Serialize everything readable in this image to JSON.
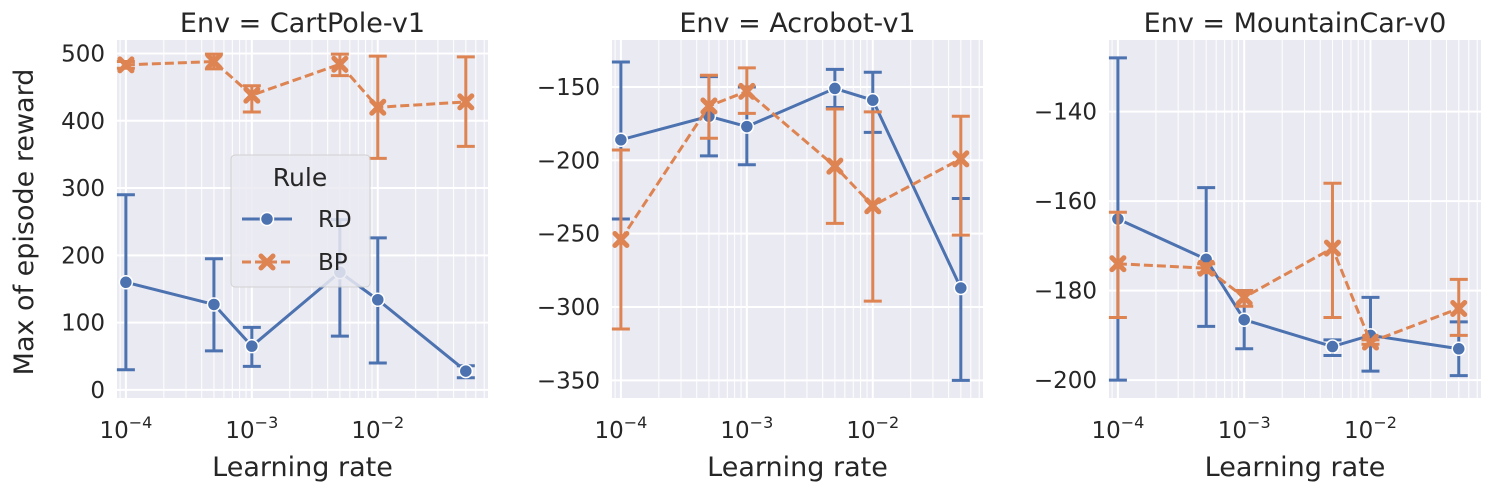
{
  "figure": {
    "ylabel": "Max of episode reward",
    "legend": {
      "title": "Rule",
      "placement": "center-left of first panel"
    }
  },
  "colors": {
    "RD": "#4c72b0",
    "BP": "#dd8452",
    "panel_bg": "#eaeaf2",
    "grid": "#ffffff"
  },
  "chart_data": [
    {
      "type": "line",
      "title": "Env = CartPole-v1",
      "xlabel": "Learning rate",
      "ylabel": "Max of episode reward",
      "xscale": "log",
      "xlim": [
        8.5e-05,
        0.075
      ],
      "ylim": [
        -12,
        520
      ],
      "yticks": [
        0,
        100,
        200,
        300,
        400,
        500
      ],
      "ytick_labels": [
        "0",
        "100",
        "200",
        "300",
        "400",
        "500"
      ],
      "xtick_labels": [
        "10^-4",
        "10^-3",
        "10^-2"
      ],
      "grid": true,
      "x": [
        0.0001,
        0.0005,
        0.001,
        0.005,
        0.01,
        0.05
      ],
      "series": [
        {
          "name": "RD",
          "marker": "o",
          "linestyle": "solid",
          "values": [
            160,
            127,
            65,
            175,
            134,
            28
          ],
          "err_low": [
            30,
            58,
            35,
            80,
            40,
            18
          ],
          "err_high": [
            290,
            195,
            93,
            253,
            226,
            36
          ]
        },
        {
          "name": "BP",
          "marker": "x",
          "linestyle": "dashed",
          "values": [
            483,
            488,
            438,
            484,
            420,
            428
          ],
          "err_low": [
            478,
            477,
            413,
            467,
            344,
            362
          ],
          "err_high": [
            488,
            499,
            452,
            499,
            496,
            495
          ]
        }
      ]
    },
    {
      "type": "line",
      "title": "Env = Acrobot-v1",
      "xlabel": "Learning rate",
      "ylabel": "",
      "xscale": "log",
      "xlim": [
        8.5e-05,
        0.075
      ],
      "ylim": [
        -362,
        -118
      ],
      "yticks": [
        -350,
        -300,
        -250,
        -200,
        -150
      ],
      "ytick_labels": [
        "−350",
        "−300",
        "−250",
        "−200",
        "−150"
      ],
      "xtick_labels": [
        "10^-4",
        "10^-3",
        "10^-2"
      ],
      "grid": true,
      "x": [
        0.0001,
        0.0005,
        0.001,
        0.005,
        0.01,
        0.05
      ],
      "series": [
        {
          "name": "RD",
          "marker": "o",
          "linestyle": "solid",
          "values": [
            -186,
            -170,
            -177,
            -151,
            -159,
            -287
          ],
          "err_low": [
            -240,
            -197,
            -203,
            -164,
            -181,
            -350
          ],
          "err_high": [
            -133,
            -143,
            -150,
            -138,
            -140,
            -226
          ]
        },
        {
          "name": "BP",
          "marker": "x",
          "linestyle": "dashed",
          "values": [
            -254,
            -163,
            -153,
            -204,
            -231,
            -199
          ],
          "err_low": [
            -315,
            -185,
            -168,
            -243,
            -296,
            -251
          ],
          "err_high": [
            -193,
            -142,
            -137,
            -165,
            -167,
            -170
          ]
        }
      ]
    },
    {
      "type": "line",
      "title": "Env = MountainCar-v0",
      "xlabel": "Learning rate",
      "ylabel": "",
      "xscale": "log",
      "xlim": [
        8.5e-05,
        0.075
      ],
      "ylim": [
        -204,
        -124
      ],
      "yticks": [
        -200,
        -180,
        -160,
        -140
      ],
      "ytick_labels": [
        "−200",
        "−180",
        "−160",
        "−140"
      ],
      "xtick_labels": [
        "10^-4",
        "10^-3",
        "10^-2"
      ],
      "grid": true,
      "x": [
        0.0001,
        0.0005,
        0.001,
        0.005,
        0.01,
        0.05
      ],
      "series": [
        {
          "name": "RD",
          "marker": "o",
          "linestyle": "solid",
          "values": [
            -164,
            -173,
            -186.5,
            -192.5,
            -190,
            -193
          ],
          "err_low": [
            -200,
            -188,
            -193,
            -194.5,
            -198,
            -199
          ],
          "err_high": [
            -128,
            -157,
            -180,
            -191,
            -181.5,
            -187
          ]
        },
        {
          "name": "BP",
          "marker": "x",
          "linestyle": "dashed",
          "values": [
            -174,
            -175,
            -181.5,
            -170.5,
            -191.5,
            -184
          ],
          "err_low": [
            -186,
            -176,
            -183.5,
            -186,
            -192,
            -190
          ],
          "err_high": [
            -162.5,
            -174,
            -180,
            -156,
            -191,
            -177.5
          ]
        }
      ]
    }
  ]
}
